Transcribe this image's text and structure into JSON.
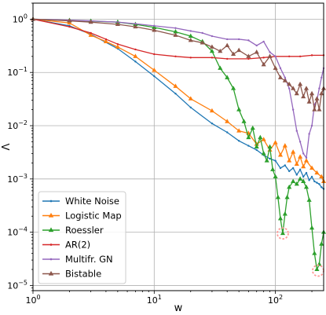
{
  "chart_data": {
    "type": "line",
    "xlabel": "w",
    "ylabel": "Λ",
    "x_scale": "log",
    "y_scale": "log",
    "xlim": [
      1,
      250
    ],
    "ylim": [
      8e-06,
      2
    ],
    "x_ticks": [
      {
        "value": 1,
        "label": "10",
        "exp": "0"
      },
      {
        "value": 10,
        "label": "10",
        "exp": "1"
      },
      {
        "value": 100,
        "label": "10",
        "exp": "2"
      }
    ],
    "y_ticks": [
      {
        "value": 1e-05,
        "label": "10",
        "exp": "−5"
      },
      {
        "value": 0.0001,
        "label": "10",
        "exp": "−4"
      },
      {
        "value": 0.001,
        "label": "10",
        "exp": "−3"
      },
      {
        "value": 0.01,
        "label": "10",
        "exp": "−2"
      },
      {
        "value": 0.1,
        "label": "10",
        "exp": "−1"
      },
      {
        "value": 1,
        "label": "10",
        "exp": "0"
      }
    ],
    "grid": true,
    "legend_position": "lower-left",
    "series": [
      {
        "name": "White Noise",
        "color": "#1f77b4",
        "marker": "circle",
        "points": [
          [
            1,
            1.0
          ],
          [
            2,
            0.75
          ],
          [
            3,
            0.52
          ],
          [
            5,
            0.28
          ],
          [
            7,
            0.16
          ],
          [
            10,
            0.085
          ],
          [
            15,
            0.04
          ],
          [
            20,
            0.022
          ],
          [
            30,
            0.011
          ],
          [
            40,
            0.0075
          ],
          [
            50,
            0.0052
          ],
          [
            60,
            0.0042
          ],
          [
            70,
            0.0035
          ],
          [
            80,
            0.0028
          ],
          [
            90,
            0.0024
          ],
          [
            100,
            0.0022
          ],
          [
            110,
            0.0016
          ],
          [
            120,
            0.0018
          ],
          [
            130,
            0.0014
          ],
          [
            140,
            0.0016
          ],
          [
            150,
            0.0012
          ],
          [
            160,
            0.0015
          ],
          [
            170,
            0.0011
          ],
          [
            180,
            0.0013
          ],
          [
            190,
            0.00095
          ],
          [
            200,
            0.0011
          ],
          [
            210,
            0.0009
          ],
          [
            220,
            0.00085
          ],
          [
            230,
            0.0008
          ],
          [
            240,
            0.0007
          ],
          [
            250,
            0.00065
          ]
        ]
      },
      {
        "name": "Logistic Map",
        "color": "#ff7f0e",
        "marker": "triangle",
        "points": [
          [
            1,
            1.0
          ],
          [
            2,
            0.85
          ],
          [
            3,
            0.5
          ],
          [
            4,
            0.38
          ],
          [
            5,
            0.3
          ],
          [
            7,
            0.2
          ],
          [
            10,
            0.11
          ],
          [
            15,
            0.055
          ],
          [
            20,
            0.032
          ],
          [
            30,
            0.019
          ],
          [
            40,
            0.012
          ],
          [
            50,
            0.008
          ],
          [
            60,
            0.0072
          ],
          [
            70,
            0.0045
          ],
          [
            80,
            0.0055
          ],
          [
            90,
            0.0035
          ],
          [
            100,
            0.0048
          ],
          [
            110,
            0.0028
          ],
          [
            120,
            0.0042
          ],
          [
            130,
            0.0022
          ],
          [
            140,
            0.0032
          ],
          [
            150,
            0.0019
          ],
          [
            160,
            0.0026
          ],
          [
            170,
            0.0017
          ],
          [
            180,
            0.0022
          ],
          [
            200,
            0.0016
          ],
          [
            220,
            0.0013
          ],
          [
            240,
            0.0011
          ],
          [
            250,
            0.0009
          ]
        ]
      },
      {
        "name": "Roessler",
        "color": "#2ca02c",
        "marker": "triangle",
        "points": [
          [
            1,
            1.0
          ],
          [
            2,
            0.95
          ],
          [
            3,
            0.92
          ],
          [
            5,
            0.88
          ],
          [
            7,
            0.8
          ],
          [
            10,
            0.7
          ],
          [
            15,
            0.58
          ],
          [
            20,
            0.48
          ],
          [
            25,
            0.38
          ],
          [
            30,
            0.25
          ],
          [
            35,
            0.12
          ],
          [
            40,
            0.08
          ],
          [
            45,
            0.05
          ],
          [
            50,
            0.02
          ],
          [
            55,
            0.012
          ],
          [
            60,
            0.006
          ],
          [
            65,
            0.009
          ],
          [
            70,
            0.004
          ],
          [
            75,
            0.006
          ],
          [
            80,
            0.003
          ],
          [
            85,
            0.0022
          ],
          [
            90,
            0.004
          ],
          [
            95,
            0.0015
          ],
          [
            100,
            0.0011
          ],
          [
            105,
            0.00045
          ],
          [
            110,
            0.00018
          ],
          [
            115,
            9.5e-05
          ],
          [
            120,
            0.00022
          ],
          [
            125,
            0.00045
          ],
          [
            130,
            0.0007
          ],
          [
            140,
            0.0009
          ],
          [
            150,
            0.0008
          ],
          [
            160,
            0.001
          ],
          [
            170,
            0.0009
          ],
          [
            180,
            0.0007
          ],
          [
            190,
            0.0004
          ],
          [
            200,
            0.00012
          ],
          [
            210,
            4e-05
          ],
          [
            220,
            2e-05
          ],
          [
            230,
            2.5e-05
          ],
          [
            240,
            6e-05
          ],
          [
            250,
            0.0001
          ]
        ]
      },
      {
        "name": "AR(2)",
        "color": "#d62728",
        "marker": "circle",
        "points": [
          [
            1,
            1.0
          ],
          [
            2,
            0.72
          ],
          [
            3,
            0.55
          ],
          [
            4,
            0.42
          ],
          [
            5,
            0.34
          ],
          [
            7,
            0.27
          ],
          [
            10,
            0.22
          ],
          [
            15,
            0.2
          ],
          [
            20,
            0.19
          ],
          [
            30,
            0.19
          ],
          [
            40,
            0.18
          ],
          [
            60,
            0.18
          ],
          [
            80,
            0.19
          ],
          [
            100,
            0.2
          ],
          [
            130,
            0.2
          ],
          [
            160,
            0.2
          ],
          [
            200,
            0.21
          ],
          [
            250,
            0.21
          ]
        ]
      },
      {
        "name": "Multifr. GN",
        "color": "#9467bd",
        "marker": "circle",
        "points": [
          [
            1,
            1.0
          ],
          [
            2,
            0.96
          ],
          [
            3,
            0.93
          ],
          [
            5,
            0.88
          ],
          [
            7,
            0.82
          ],
          [
            10,
            0.75
          ],
          [
            15,
            0.68
          ],
          [
            20,
            0.6
          ],
          [
            25,
            0.55
          ],
          [
            30,
            0.48
          ],
          [
            40,
            0.42
          ],
          [
            50,
            0.42
          ],
          [
            60,
            0.4
          ],
          [
            70,
            0.32
          ],
          [
            80,
            0.38
          ],
          [
            90,
            0.24
          ],
          [
            100,
            0.2
          ],
          [
            110,
            0.12
          ],
          [
            120,
            0.08
          ],
          [
            130,
            0.05
          ],
          [
            140,
            0.02
          ],
          [
            150,
            0.008
          ],
          [
            160,
            0.005
          ],
          [
            170,
            0.003
          ],
          [
            180,
            0.0025
          ],
          [
            190,
            0.007
          ],
          [
            200,
            0.01
          ],
          [
            210,
            0.025
          ],
          [
            220,
            0.03
          ],
          [
            230,
            0.05
          ],
          [
            240,
            0.08
          ],
          [
            250,
            0.12
          ]
        ]
      },
      {
        "name": "Bistable",
        "color": "#8c564b",
        "marker": "triangle",
        "points": [
          [
            1,
            1.0
          ],
          [
            2,
            0.93
          ],
          [
            3,
            0.88
          ],
          [
            5,
            0.8
          ],
          [
            7,
            0.72
          ],
          [
            10,
            0.62
          ],
          [
            15,
            0.5
          ],
          [
            20,
            0.4
          ],
          [
            25,
            0.36
          ],
          [
            30,
            0.3
          ],
          [
            35,
            0.25
          ],
          [
            40,
            0.32
          ],
          [
            45,
            0.22
          ],
          [
            50,
            0.26
          ],
          [
            60,
            0.2
          ],
          [
            70,
            0.24
          ],
          [
            80,
            0.14
          ],
          [
            90,
            0.2
          ],
          [
            100,
            0.12
          ],
          [
            110,
            0.08
          ],
          [
            120,
            0.07
          ],
          [
            130,
            0.06
          ],
          [
            140,
            0.05
          ],
          [
            150,
            0.04
          ],
          [
            160,
            0.06
          ],
          [
            170,
            0.035
          ],
          [
            180,
            0.05
          ],
          [
            190,
            0.028
          ],
          [
            200,
            0.04
          ],
          [
            210,
            0.02
          ],
          [
            220,
            0.032
          ],
          [
            230,
            0.02
          ],
          [
            240,
            0.04
          ],
          [
            250,
            0.05
          ]
        ]
      }
    ],
    "highlights": [
      {
        "x": 115,
        "y": 9.5e-05,
        "color": "#ff9896"
      },
      {
        "x": 225,
        "y": 1.9e-05,
        "color": "#ff9896"
      }
    ]
  }
}
